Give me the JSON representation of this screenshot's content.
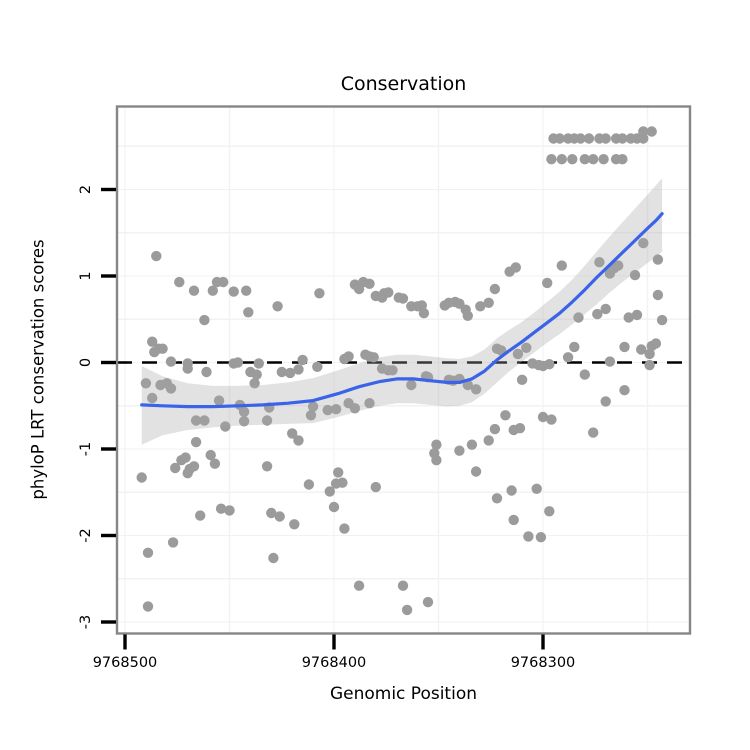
{
  "chart_data": {
    "type": "scatter",
    "title": "Conservation",
    "xlabel": "Genomic Position",
    "ylabel": "phyloP LRT conservation scores",
    "x_reversed": true,
    "x_ticks": [
      9768500,
      9768400,
      9768300
    ],
    "x_tick_labels": [
      "9768500",
      "9768400",
      "9768300"
    ],
    "y_ticks": [
      -3,
      -2,
      -1,
      0,
      1,
      2
    ],
    "x_minor_ticks": [
      9768450,
      9768350,
      9768250
    ],
    "y_minor_ticks": [
      -2.5,
      -1.5,
      -0.5,
      0.5,
      1.5,
      2.5
    ],
    "xlim": [
      9768504,
      9768230
    ],
    "ylim": [
      -3.13,
      2.96
    ],
    "reference_line_y": 0,
    "grid": "minor-faint",
    "legend": "none",
    "colors": {
      "point": "#9b9b9b",
      "smooth": "#3a63e8",
      "band": "#a8a8a8",
      "reference": "#000000",
      "border": "#868686",
      "grid": "#f2f2f2",
      "text": "#000000"
    },
    "points": [
      [
        9768295,
        2.59
      ],
      [
        9768292,
        2.59
      ],
      [
        9768288,
        2.59
      ],
      [
        9768285,
        2.59
      ],
      [
        9768282,
        2.59
      ],
      [
        9768278,
        2.59
      ],
      [
        9768273,
        2.59
      ],
      [
        9768270,
        2.59
      ],
      [
        9768265,
        2.59
      ],
      [
        9768262,
        2.59
      ],
      [
        9768258,
        2.59
      ],
      [
        9768255,
        2.59
      ],
      [
        9768252,
        2.59
      ],
      [
        9768252,
        2.67
      ],
      [
        9768248,
        2.67
      ],
      [
        9768296,
        2.35
      ],
      [
        9768291,
        2.35
      ],
      [
        9768286,
        2.35
      ],
      [
        9768280,
        2.35
      ],
      [
        9768276,
        2.35
      ],
      [
        9768271,
        2.35
      ],
      [
        9768265,
        2.35
      ],
      [
        9768262,
        2.35
      ],
      [
        9768485,
        1.23
      ],
      [
        9768474,
        0.93
      ],
      [
        9768467,
        0.83
      ],
      [
        9768462,
        0.49
      ],
      [
        9768458,
        0.83
      ],
      [
        9768456,
        0.93
      ],
      [
        9768453,
        0.93
      ],
      [
        9768448,
        0.82
      ],
      [
        9768442,
        0.83
      ],
      [
        9768441,
        0.58
      ],
      [
        9768427,
        0.65
      ],
      [
        9768407,
        0.8
      ],
      [
        9768390,
        0.9
      ],
      [
        9768388,
        0.85
      ],
      [
        9768386,
        0.93
      ],
      [
        9768383,
        0.91
      ],
      [
        9768380,
        0.77
      ],
      [
        9768377,
        0.75
      ],
      [
        9768376,
        0.8
      ],
      [
        9768374,
        0.81
      ],
      [
        9768369,
        0.75
      ],
      [
        9768367,
        0.74
      ],
      [
        9768363,
        0.65
      ],
      [
        9768360,
        0.65
      ],
      [
        9768358,
        0.66
      ],
      [
        9768357,
        0.57
      ],
      [
        9768347,
        0.66
      ],
      [
        9768345,
        0.69
      ],
      [
        9768342,
        0.7
      ],
      [
        9768340,
        0.68
      ],
      [
        9768337,
        0.61
      ],
      [
        9768336,
        0.54
      ],
      [
        9768330,
        0.65
      ],
      [
        9768326,
        0.69
      ],
      [
        9768323,
        0.85
      ],
      [
        9768316,
        1.05
      ],
      [
        9768313,
        1.1
      ],
      [
        9768298,
        0.92
      ],
      [
        9768291,
        1.12
      ],
      [
        9768283,
        0.52
      ],
      [
        9768274,
        0.56
      ],
      [
        9768273,
        1.16
      ],
      [
        9768270,
        0.62
      ],
      [
        9768268,
        1.03
      ],
      [
        9768266,
        1.09
      ],
      [
        9768264,
        1.12
      ],
      [
        9768259,
        0.52
      ],
      [
        9768256,
        1.01
      ],
      [
        9768255,
        0.55
      ],
      [
        9768252,
        1.38
      ],
      [
        9768245,
        1.19
      ],
      [
        9768245,
        0.78
      ],
      [
        9768243,
        0.49
      ],
      [
        9768487,
        0.24
      ],
      [
        9768486,
        0.12
      ],
      [
        9768484,
        0.16
      ],
      [
        9768482,
        0.16
      ],
      [
        9768478,
        0.01
      ],
      [
        9768470,
        -0.01
      ],
      [
        9768446,
        0.0
      ],
      [
        9768448,
        -0.01
      ],
      [
        9768436,
        -0.01
      ],
      [
        9768415,
        0.03
      ],
      [
        9768393,
        0.07
      ],
      [
        9768395,
        0.04
      ],
      [
        9768385,
        0.09
      ],
      [
        9768383,
        0.07
      ],
      [
        9768381,
        0.06
      ],
      [
        9768322,
        0.16
      ],
      [
        9768320,
        0.14
      ],
      [
        9768312,
        0.1
      ],
      [
        9768308,
        0.17
      ],
      [
        9768305,
        -0.01
      ],
      [
        9768302,
        -0.03
      ],
      [
        9768300,
        -0.04
      ],
      [
        9768297,
        -0.02
      ],
      [
        9768288,
        0.06
      ],
      [
        9768285,
        0.18
      ],
      [
        9768280,
        -0.14
      ],
      [
        9768268,
        0.01
      ],
      [
        9768261,
        0.18
      ],
      [
        9768253,
        0.15
      ],
      [
        9768249,
        0.1
      ],
      [
        9768249,
        -0.03
      ],
      [
        9768248,
        0.19
      ],
      [
        9768246,
        0.22
      ],
      [
        9768470,
        -0.07
      ],
      [
        9768461,
        -0.11
      ],
      [
        9768490,
        -0.24
      ],
      [
        9768483,
        -0.26
      ],
      [
        9768480,
        -0.24
      ],
      [
        9768478,
        -0.3
      ],
      [
        9768440,
        -0.11
      ],
      [
        9768437,
        -0.14
      ],
      [
        9768438,
        -0.24
      ],
      [
        9768425,
        -0.11
      ],
      [
        9768421,
        -0.12
      ],
      [
        9768417,
        -0.08
      ],
      [
        9768408,
        -0.05
      ],
      [
        9768377,
        -0.07
      ],
      [
        9768374,
        -0.09
      ],
      [
        9768372,
        -0.09
      ],
      [
        9768363,
        -0.26
      ],
      [
        9768356,
        -0.16
      ],
      [
        9768355,
        -0.17
      ],
      [
        9768345,
        -0.2
      ],
      [
        9768343,
        -0.21
      ],
      [
        9768340,
        -0.19
      ],
      [
        9768336,
        -0.26
      ],
      [
        9768332,
        -0.31
      ],
      [
        9768310,
        -0.2
      ],
      [
        9768261,
        -0.32
      ],
      [
        9768487,
        -0.41
      ],
      [
        9768455,
        -0.44
      ],
      [
        9768445,
        -0.49
      ],
      [
        9768443,
        -0.57
      ],
      [
        9768466,
        -0.67
      ],
      [
        9768462,
        -0.67
      ],
      [
        9768452,
        -0.74
      ],
      [
        9768443,
        -0.68
      ],
      [
        9768432,
        -0.67
      ],
      [
        9768431,
        -0.52
      ],
      [
        9768420,
        -0.82
      ],
      [
        9768417,
        -0.9
      ],
      [
        9768466,
        -0.92
      ],
      [
        9768393,
        -0.47
      ],
      [
        9768390,
        -0.53
      ],
      [
        9768383,
        -0.47
      ],
      [
        9768403,
        -0.55
      ],
      [
        9768399,
        -0.54
      ],
      [
        9768410,
        -0.51
      ],
      [
        9768411,
        -0.61
      ],
      [
        9768318,
        -0.61
      ],
      [
        9768323,
        -0.77
      ],
      [
        9768314,
        -0.78
      ],
      [
        9768311,
        -0.76
      ],
      [
        9768270,
        -0.45
      ],
      [
        9768300,
        -0.63
      ],
      [
        9768296,
        -0.66
      ],
      [
        9768276,
        -0.81
      ],
      [
        9768351,
        -0.95
      ],
      [
        9768334,
        -0.95
      ],
      [
        9768326,
        -0.9
      ],
      [
        9768492,
        -1.33
      ],
      [
        9768476,
        -1.22
      ],
      [
        9768473,
        -1.13
      ],
      [
        9768471,
        -1.1
      ],
      [
        9768469,
        -1.23
      ],
      [
        9768467,
        -1.2
      ],
      [
        9768470,
        -1.28
      ],
      [
        9768459,
        -1.07
      ],
      [
        9768457,
        -1.17
      ],
      [
        9768432,
        -1.2
      ],
      [
        9768412,
        -1.41
      ],
      [
        9768464,
        -1.77
      ],
      [
        9768454,
        -1.69
      ],
      [
        9768450,
        -1.71
      ],
      [
        9768430,
        -1.74
      ],
      [
        9768426,
        -1.78
      ],
      [
        9768419,
        -1.87
      ],
      [
        9768398,
        -1.27
      ],
      [
        9768399,
        -1.4
      ],
      [
        9768396,
        -1.39
      ],
      [
        9768402,
        -1.49
      ],
      [
        9768400,
        -1.67
      ],
      [
        9768395,
        -1.92
      ],
      [
        9768380,
        -1.44
      ],
      [
        9768352,
        -1.05
      ],
      [
        9768351,
        -1.13
      ],
      [
        9768340,
        -1.02
      ],
      [
        9768332,
        -1.26
      ],
      [
        9768322,
        -1.57
      ],
      [
        9768315,
        -1.48
      ],
      [
        9768314,
        -1.82
      ],
      [
        9768303,
        -1.46
      ],
      [
        9768297,
        -1.72
      ],
      [
        9768307,
        -2.01
      ],
      [
        9768301,
        -2.02
      ],
      [
        9768477,
        -2.08
      ],
      [
        9768489,
        -2.2
      ],
      [
        9768429,
        -2.26
      ],
      [
        9768489,
        -2.82
      ],
      [
        9768388,
        -2.58
      ],
      [
        9768367,
        -2.58
      ],
      [
        9768365,
        -2.86
      ],
      [
        9768355,
        -2.77
      ]
    ],
    "smooth_line": [
      [
        9768492,
        -0.49
      ],
      [
        9768482,
        -0.5
      ],
      [
        9768470,
        -0.51
      ],
      [
        9768458,
        -0.51
      ],
      [
        9768446,
        -0.5
      ],
      [
        9768434,
        -0.49
      ],
      [
        9768422,
        -0.47
      ],
      [
        9768410,
        -0.44
      ],
      [
        9768398,
        -0.36
      ],
      [
        9768388,
        -0.28
      ],
      [
        9768378,
        -0.22
      ],
      [
        9768370,
        -0.19
      ],
      [
        9768362,
        -0.19
      ],
      [
        9768354,
        -0.21
      ],
      [
        9768346,
        -0.23
      ],
      [
        9768340,
        -0.23
      ],
      [
        9768334,
        -0.19
      ],
      [
        9768328,
        -0.1
      ],
      [
        9768322,
        0.03
      ],
      [
        9768316,
        0.14
      ],
      [
        9768310,
        0.24
      ],
      [
        9768304,
        0.35
      ],
      [
        9768298,
        0.46
      ],
      [
        9768292,
        0.57
      ],
      [
        9768286,
        0.7
      ],
      [
        9768280,
        0.84
      ],
      [
        9768274,
        0.99
      ],
      [
        9768268,
        1.13
      ],
      [
        9768262,
        1.27
      ],
      [
        9768256,
        1.41
      ],
      [
        9768250,
        1.55
      ],
      [
        9768246,
        1.64
      ],
      [
        9768243,
        1.72
      ]
    ],
    "ci_band": [
      [
        9768492,
        -0.95,
        -0.04
      ],
      [
        9768482,
        -0.84,
        -0.16
      ],
      [
        9768470,
        -0.78,
        -0.24
      ],
      [
        9768458,
        -0.75,
        -0.27
      ],
      [
        9768446,
        -0.73,
        -0.27
      ],
      [
        9768434,
        -0.72,
        -0.26
      ],
      [
        9768422,
        -0.71,
        -0.23
      ],
      [
        9768410,
        -0.7,
        -0.18
      ],
      [
        9768398,
        -0.63,
        -0.09
      ],
      [
        9768388,
        -0.56,
        -0.01
      ],
      [
        9768378,
        -0.5,
        0.06
      ],
      [
        9768370,
        -0.47,
        0.09
      ],
      [
        9768362,
        -0.47,
        0.09
      ],
      [
        9768354,
        -0.49,
        0.07
      ],
      [
        9768346,
        -0.51,
        0.05
      ],
      [
        9768340,
        -0.5,
        0.04
      ],
      [
        9768334,
        -0.46,
        0.07
      ],
      [
        9768328,
        -0.36,
        0.15
      ],
      [
        9768322,
        -0.23,
        0.28
      ],
      [
        9768316,
        -0.1,
        0.38
      ],
      [
        9768310,
        0.01,
        0.47
      ],
      [
        9768304,
        0.12,
        0.58
      ],
      [
        9768298,
        0.23,
        0.7
      ],
      [
        9768292,
        0.33,
        0.82
      ],
      [
        9768286,
        0.44,
        0.96
      ],
      [
        9768280,
        0.56,
        1.12
      ],
      [
        9768274,
        0.68,
        1.29
      ],
      [
        9768268,
        0.81,
        1.46
      ],
      [
        9768262,
        0.93,
        1.62
      ],
      [
        9768256,
        1.04,
        1.78
      ],
      [
        9768250,
        1.15,
        1.94
      ],
      [
        9768246,
        1.22,
        2.05
      ],
      [
        9768243,
        1.28,
        2.13
      ]
    ]
  }
}
